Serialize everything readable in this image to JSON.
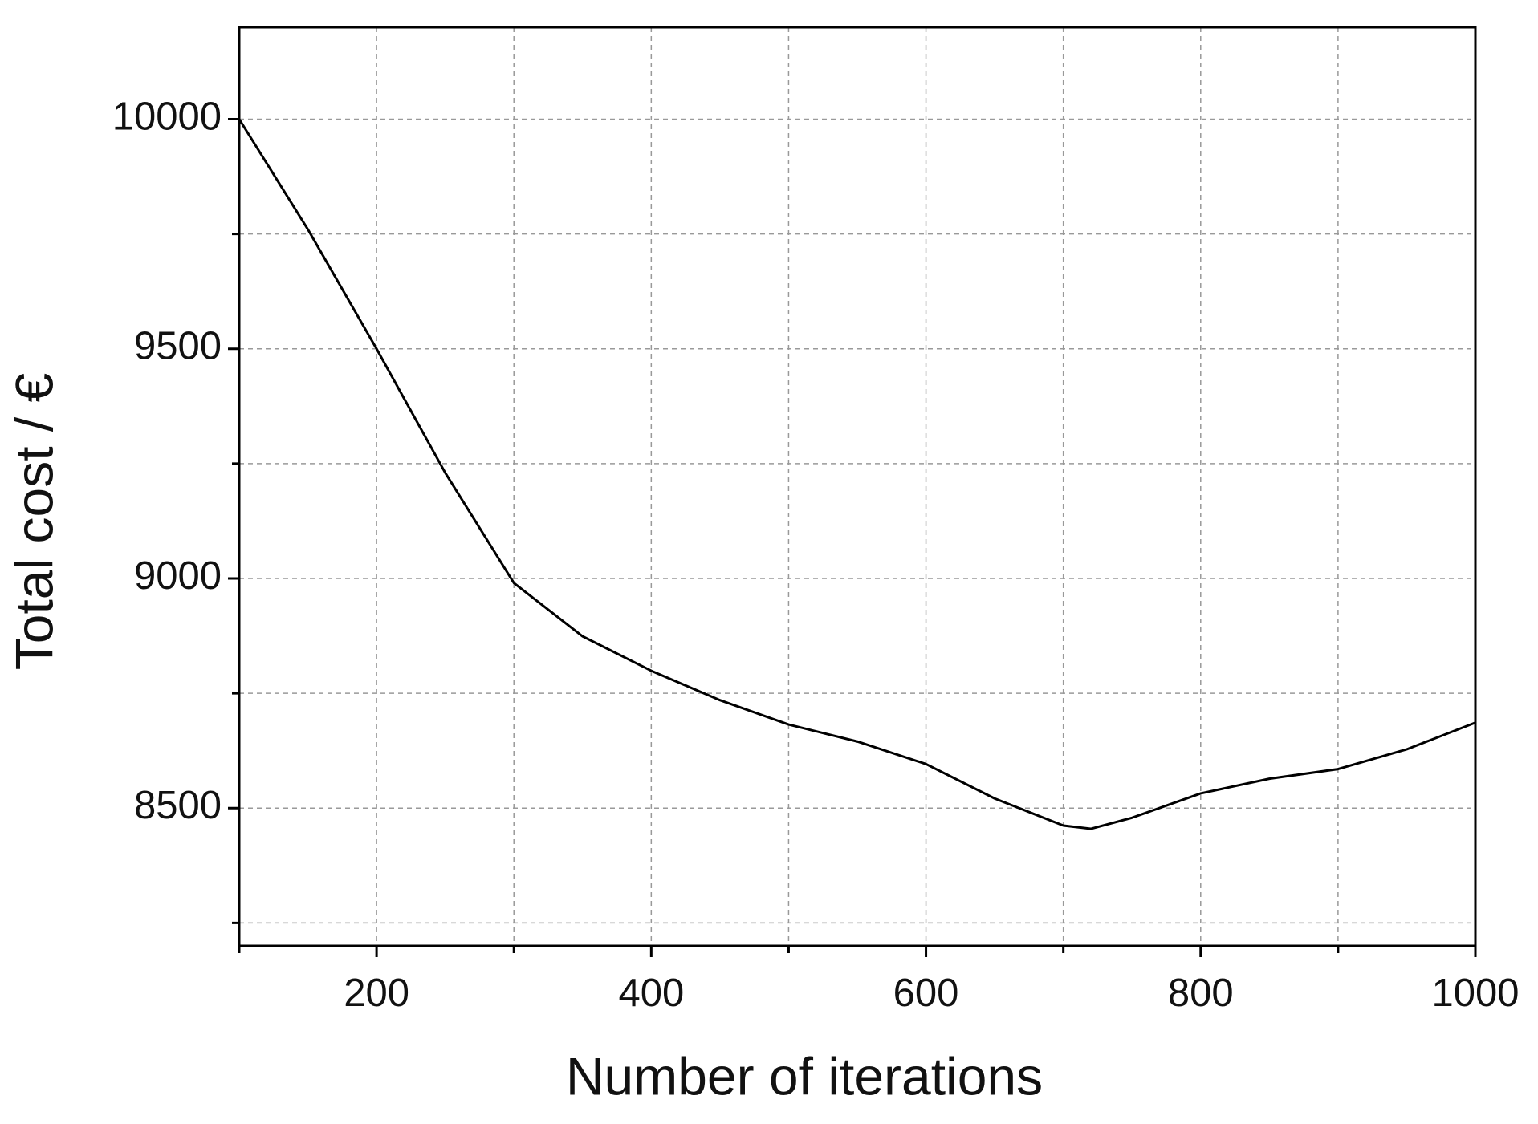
{
  "chart_data": {
    "type": "line",
    "x_label": "Number of iterations",
    "y_label": "Total cost / €",
    "x": [
      100,
      150,
      200,
      250,
      300,
      350,
      400,
      450,
      500,
      550,
      600,
      650,
      700,
      720,
      750,
      800,
      850,
      900,
      950,
      1000
    ],
    "series": [
      {
        "name": "Total cost",
        "color": "#000000",
        "values": [
          10000,
          9760,
          9500,
          9230,
          8990,
          8874,
          8799,
          8735,
          8682,
          8645,
          8596,
          8521,
          8462,
          8455,
          8479,
          8532,
          8564,
          8585,
          8628,
          8686
        ]
      }
    ],
    "xlim": [
      100,
      1000
    ],
    "xticks": [
      200,
      400,
      600,
      800,
      1000
    ],
    "xminorticks": [
      100,
      300,
      500,
      700,
      900
    ],
    "ylim": [
      8200,
      10200
    ],
    "yticks": [
      8500,
      9000,
      9500,
      10000
    ],
    "yminorticks": [
      8250,
      8750,
      9250,
      9750
    ],
    "grid": true
  }
}
